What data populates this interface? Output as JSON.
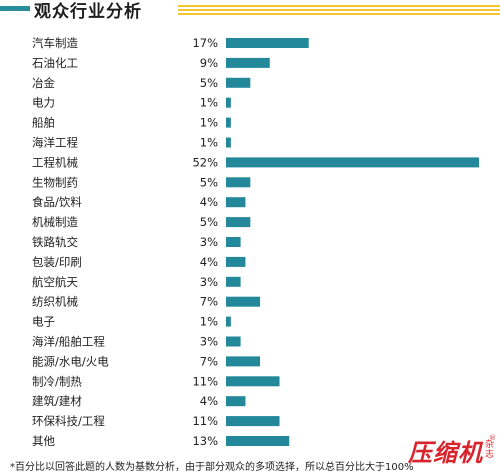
{
  "header": {
    "title": "观众行业分析"
  },
  "chart_data": {
    "type": "bar",
    "orientation": "horizontal",
    "categories": [
      "汽车制造",
      "石油化工",
      "冶金",
      "电力",
      "船舶",
      "海洋工程",
      "工程机械",
      "生物制药",
      "食品/饮料",
      "机械制造",
      "铁路轨交",
      "包装/印刷",
      "航空航天",
      "纺织机械",
      "电子",
      "海洋/船舶工程",
      "能源/水电/火电",
      "制冷/制热",
      "建筑/建材",
      "环保科技/工程",
      "其他"
    ],
    "values": [
      17,
      9,
      5,
      1,
      1,
      1,
      52,
      5,
      4,
      5,
      3,
      4,
      3,
      7,
      1,
      3,
      7,
      11,
      4,
      11,
      13
    ],
    "value_labels": [
      "17%",
      "9%",
      "5%",
      "1%",
      "1%",
      "1%",
      "52%",
      "5%",
      "4%",
      "5%",
      "3%",
      "4%",
      "3%",
      "7%",
      "1%",
      "3%",
      "7%",
      "11%",
      "4%",
      "11%",
      "13%"
    ],
    "unit": "%",
    "grid": false,
    "bar_color": "#23889a"
  },
  "footnote": "*百分比以回答此题的人数为基数分析，由于部分观众的多项选择，所以总百分比大于100%",
  "logo": {
    "main": "压缩机",
    "sub1": "杂",
    "sub2": "志",
    "reg": "®"
  },
  "colors": {
    "accent": "#2a8d9b",
    "stripe": "#f3c531",
    "brand": "#d9232d"
  }
}
